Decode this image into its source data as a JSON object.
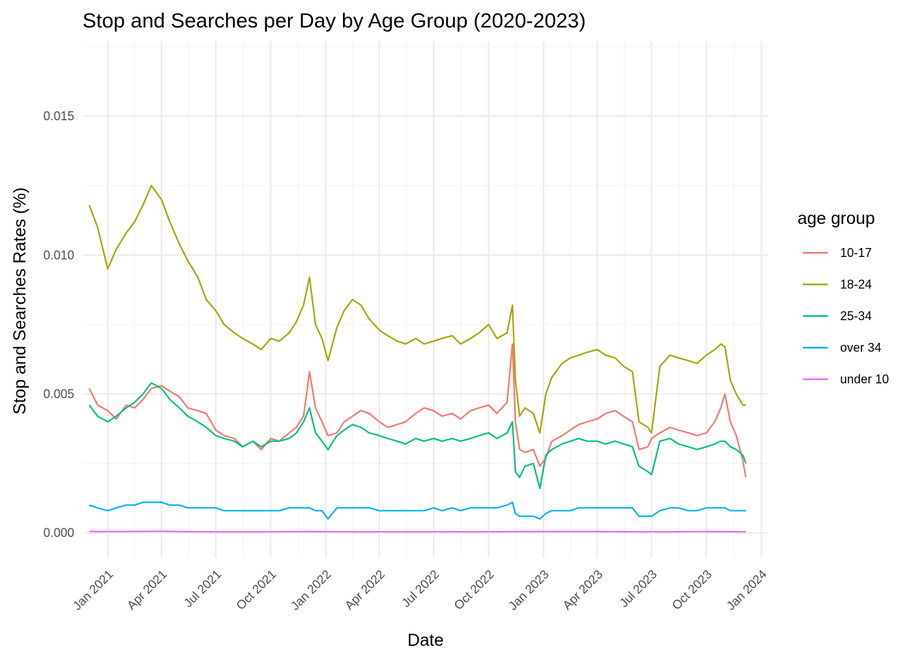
{
  "chart_data": {
    "type": "line",
    "title": "Stop and Searches per Day by Age Group (2020-2023)",
    "xlabel": "Date",
    "ylabel": "Stop and Searches Rates (%)",
    "x_range": [
      "2020-11-22",
      "2024-01-12"
    ],
    "ylim": [
      -0.0009,
      0.0177
    ],
    "grid": true,
    "y_ticks": [
      0.0,
      0.005,
      0.01,
      0.015
    ],
    "y_tick_labels": [
      "0.000",
      "0.005",
      "0.010",
      "0.015"
    ],
    "x_ticks": [
      "2021-01-01",
      "2021-04-01",
      "2021-07-01",
      "2021-10-01",
      "2022-01-01",
      "2022-04-01",
      "2022-07-01",
      "2022-10-01",
      "2023-01-01",
      "2023-04-01",
      "2023-07-01",
      "2023-10-01",
      "2024-01-01"
    ],
    "x_tick_labels": [
      "Jan 2021",
      "Apr 2021",
      "Jul 2021",
      "Oct 2021",
      "Jan 2022",
      "Apr 2022",
      "Jul 2022",
      "Oct 2022",
      "Jan 2023",
      "Apr 2023",
      "Jul 2023",
      "Oct 2023",
      "Jan 2024"
    ],
    "legend": {
      "title": "age group",
      "position": "right"
    },
    "series": [
      {
        "name": "10-17",
        "color": "#F8766D",
        "x": [
          "2020-12-01",
          "2020-12-15",
          "2021-01-01",
          "2021-01-15",
          "2021-02-01",
          "2021-02-15",
          "2021-03-01",
          "2021-03-15",
          "2021-04-01",
          "2021-04-15",
          "2021-05-01",
          "2021-05-15",
          "2021-06-01",
          "2021-06-15",
          "2021-07-01",
          "2021-07-15",
          "2021-08-01",
          "2021-08-15",
          "2021-09-01",
          "2021-09-15",
          "2021-10-01",
          "2021-10-15",
          "2021-11-01",
          "2021-11-13",
          "2021-11-25",
          "2021-12-05",
          "2021-12-15",
          "2021-12-26",
          "2022-01-05",
          "2022-01-20",
          "2022-02-01",
          "2022-02-15",
          "2022-03-01",
          "2022-03-15",
          "2022-04-01",
          "2022-04-15",
          "2022-05-01",
          "2022-05-15",
          "2022-06-01",
          "2022-06-15",
          "2022-07-01",
          "2022-07-15",
          "2022-08-01",
          "2022-08-15",
          "2022-09-01",
          "2022-09-15",
          "2022-10-01",
          "2022-10-15",
          "2022-11-01",
          "2022-11-10",
          "2022-11-15",
          "2022-11-22",
          "2022-12-01",
          "2022-12-15",
          "2022-12-26",
          "2023-01-05",
          "2023-01-15",
          "2023-02-01",
          "2023-02-15",
          "2023-03-01",
          "2023-03-15",
          "2023-04-01",
          "2023-04-15",
          "2023-05-01",
          "2023-05-15",
          "2023-05-30",
          "2023-06-10",
          "2023-06-25",
          "2023-07-01",
          "2023-07-15",
          "2023-08-01",
          "2023-08-15",
          "2023-09-01",
          "2023-09-15",
          "2023-10-01",
          "2023-10-15",
          "2023-10-25",
          "2023-11-01",
          "2023-11-10",
          "2023-11-20",
          "2023-12-01",
          "2023-12-06"
        ],
        "values": [
          0.0052,
          0.0046,
          0.0044,
          0.0041,
          0.0046,
          0.0045,
          0.0048,
          0.0052,
          0.0053,
          0.0051,
          0.0049,
          0.0045,
          0.0044,
          0.0043,
          0.0037,
          0.0035,
          0.0034,
          0.0031,
          0.0033,
          0.003,
          0.0034,
          0.0033,
          0.0036,
          0.0038,
          0.0042,
          0.0058,
          0.0045,
          0.004,
          0.0035,
          0.0036,
          0.004,
          0.0042,
          0.0044,
          0.0043,
          0.004,
          0.0038,
          0.0039,
          0.004,
          0.0043,
          0.0045,
          0.0044,
          0.0042,
          0.0043,
          0.0041,
          0.0044,
          0.0045,
          0.0046,
          0.0043,
          0.0047,
          0.0068,
          0.004,
          0.003,
          0.0029,
          0.003,
          0.0024,
          0.0027,
          0.0033,
          0.0035,
          0.0037,
          0.0039,
          0.004,
          0.0041,
          0.0043,
          0.0044,
          0.0042,
          0.004,
          0.003,
          0.0031,
          0.0034,
          0.0036,
          0.0038,
          0.0037,
          0.0036,
          0.0035,
          0.0036,
          0.004,
          0.0045,
          0.005,
          0.004,
          0.0035,
          0.0026,
          0.002
        ]
      },
      {
        "name": "18-24",
        "color": "#A3A500",
        "x": [
          "2020-12-01",
          "2020-12-15",
          "2021-01-01",
          "2021-01-15",
          "2021-02-01",
          "2021-02-15",
          "2021-03-01",
          "2021-03-15",
          "2021-04-01",
          "2021-04-15",
          "2021-05-01",
          "2021-05-15",
          "2021-06-01",
          "2021-06-15",
          "2021-07-01",
          "2021-07-15",
          "2021-08-01",
          "2021-08-15",
          "2021-09-01",
          "2021-09-15",
          "2021-10-01",
          "2021-10-15",
          "2021-11-01",
          "2021-11-13",
          "2021-11-25",
          "2021-12-05",
          "2021-12-15",
          "2021-12-26",
          "2022-01-05",
          "2022-01-20",
          "2022-02-01",
          "2022-02-15",
          "2022-03-01",
          "2022-03-15",
          "2022-04-01",
          "2022-04-15",
          "2022-05-01",
          "2022-05-15",
          "2022-06-01",
          "2022-06-15",
          "2022-07-01",
          "2022-07-15",
          "2022-08-01",
          "2022-08-15",
          "2022-09-01",
          "2022-09-15",
          "2022-10-01",
          "2022-10-15",
          "2022-11-01",
          "2022-11-10",
          "2022-11-15",
          "2022-11-22",
          "2022-12-01",
          "2022-12-15",
          "2022-12-26",
          "2023-01-05",
          "2023-01-15",
          "2023-02-01",
          "2023-02-15",
          "2023-03-01",
          "2023-03-15",
          "2023-04-01",
          "2023-04-15",
          "2023-05-01",
          "2023-05-15",
          "2023-05-30",
          "2023-06-10",
          "2023-06-25",
          "2023-07-01",
          "2023-07-15",
          "2023-08-01",
          "2023-08-15",
          "2023-09-01",
          "2023-09-15",
          "2023-10-01",
          "2023-10-15",
          "2023-10-25",
          "2023-11-01",
          "2023-11-10",
          "2023-11-20",
          "2023-12-01",
          "2023-12-06"
        ],
        "values": [
          0.0118,
          0.011,
          0.0095,
          0.0102,
          0.0108,
          0.0112,
          0.0118,
          0.0125,
          0.012,
          0.0112,
          0.0104,
          0.0098,
          0.0092,
          0.0084,
          0.008,
          0.0075,
          0.0072,
          0.007,
          0.0068,
          0.0066,
          0.007,
          0.0069,
          0.0072,
          0.0076,
          0.0082,
          0.0092,
          0.0075,
          0.007,
          0.0062,
          0.0074,
          0.008,
          0.0084,
          0.0082,
          0.0077,
          0.0073,
          0.0071,
          0.0069,
          0.0068,
          0.007,
          0.0068,
          0.0069,
          0.007,
          0.0071,
          0.0068,
          0.007,
          0.0072,
          0.0075,
          0.007,
          0.0072,
          0.0082,
          0.0055,
          0.0042,
          0.0045,
          0.0043,
          0.0036,
          0.005,
          0.0056,
          0.0061,
          0.0063,
          0.0064,
          0.0065,
          0.0066,
          0.0064,
          0.0063,
          0.006,
          0.0058,
          0.004,
          0.0038,
          0.0036,
          0.006,
          0.0064,
          0.0063,
          0.0062,
          0.0061,
          0.0064,
          0.0066,
          0.0068,
          0.0067,
          0.0055,
          0.005,
          0.0046,
          0.0046
        ]
      },
      {
        "name": "25-34",
        "color": "#00BF7D",
        "x": [
          "2020-12-01",
          "2020-12-15",
          "2021-01-01",
          "2021-01-15",
          "2021-02-01",
          "2021-02-15",
          "2021-03-01",
          "2021-03-15",
          "2021-04-01",
          "2021-04-15",
          "2021-05-01",
          "2021-05-15",
          "2021-06-01",
          "2021-06-15",
          "2021-07-01",
          "2021-07-15",
          "2021-08-01",
          "2021-08-15",
          "2021-09-01",
          "2021-09-15",
          "2021-10-01",
          "2021-10-15",
          "2021-11-01",
          "2021-11-13",
          "2021-11-25",
          "2021-12-05",
          "2021-12-15",
          "2021-12-26",
          "2022-01-05",
          "2022-01-20",
          "2022-02-01",
          "2022-02-15",
          "2022-03-01",
          "2022-03-15",
          "2022-04-01",
          "2022-04-15",
          "2022-05-01",
          "2022-05-15",
          "2022-06-01",
          "2022-06-15",
          "2022-07-01",
          "2022-07-15",
          "2022-08-01",
          "2022-08-15",
          "2022-09-01",
          "2022-09-15",
          "2022-10-01",
          "2022-10-15",
          "2022-11-01",
          "2022-11-10",
          "2022-11-15",
          "2022-11-22",
          "2022-12-01",
          "2022-12-15",
          "2022-12-26",
          "2023-01-05",
          "2023-01-15",
          "2023-02-01",
          "2023-02-15",
          "2023-03-01",
          "2023-03-15",
          "2023-04-01",
          "2023-04-15",
          "2023-05-01",
          "2023-05-15",
          "2023-05-30",
          "2023-06-10",
          "2023-06-25",
          "2023-07-01",
          "2023-07-15",
          "2023-08-01",
          "2023-08-15",
          "2023-09-01",
          "2023-09-15",
          "2023-10-01",
          "2023-10-15",
          "2023-10-25",
          "2023-11-01",
          "2023-11-10",
          "2023-11-20",
          "2023-12-01",
          "2023-12-06"
        ],
        "values": [
          0.0046,
          0.0042,
          0.004,
          0.0042,
          0.0045,
          0.0047,
          0.005,
          0.0054,
          0.0052,
          0.0048,
          0.0045,
          0.0042,
          0.004,
          0.0038,
          0.0035,
          0.0034,
          0.0033,
          0.0031,
          0.0033,
          0.0031,
          0.0033,
          0.0033,
          0.0034,
          0.0036,
          0.004,
          0.0045,
          0.0036,
          0.0033,
          0.003,
          0.0035,
          0.0037,
          0.0039,
          0.0038,
          0.0036,
          0.0035,
          0.0034,
          0.0033,
          0.0032,
          0.0034,
          0.0033,
          0.0034,
          0.0033,
          0.0034,
          0.0033,
          0.0034,
          0.0035,
          0.0036,
          0.0034,
          0.0036,
          0.004,
          0.0022,
          0.002,
          0.0024,
          0.0025,
          0.0016,
          0.0028,
          0.003,
          0.0032,
          0.0033,
          0.0034,
          0.0033,
          0.0033,
          0.0032,
          0.0033,
          0.0032,
          0.0031,
          0.0024,
          0.0022,
          0.0021,
          0.0033,
          0.0034,
          0.0032,
          0.0031,
          0.003,
          0.0031,
          0.0032,
          0.0033,
          0.0033,
          0.0031,
          0.003,
          0.0028,
          0.0025
        ]
      },
      {
        "name": "over 34",
        "color": "#00B0F6",
        "x": [
          "2020-12-01",
          "2020-12-15",
          "2021-01-01",
          "2021-01-15",
          "2021-02-01",
          "2021-02-15",
          "2021-03-01",
          "2021-03-15",
          "2021-04-01",
          "2021-04-15",
          "2021-05-01",
          "2021-05-15",
          "2021-06-01",
          "2021-06-15",
          "2021-07-01",
          "2021-07-15",
          "2021-08-01",
          "2021-08-15",
          "2021-09-01",
          "2021-09-15",
          "2021-10-01",
          "2021-10-15",
          "2021-11-01",
          "2021-11-13",
          "2021-11-25",
          "2021-12-05",
          "2021-12-15",
          "2021-12-26",
          "2022-01-05",
          "2022-01-20",
          "2022-02-01",
          "2022-02-15",
          "2022-03-01",
          "2022-03-15",
          "2022-04-01",
          "2022-04-15",
          "2022-05-01",
          "2022-05-15",
          "2022-06-01",
          "2022-06-15",
          "2022-07-01",
          "2022-07-15",
          "2022-08-01",
          "2022-08-15",
          "2022-09-01",
          "2022-09-15",
          "2022-10-01",
          "2022-10-15",
          "2022-11-01",
          "2022-11-10",
          "2022-11-15",
          "2022-11-22",
          "2022-12-01",
          "2022-12-15",
          "2022-12-26",
          "2023-01-05",
          "2023-01-15",
          "2023-02-01",
          "2023-02-15",
          "2023-03-01",
          "2023-03-15",
          "2023-04-01",
          "2023-04-15",
          "2023-05-01",
          "2023-05-15",
          "2023-05-30",
          "2023-06-10",
          "2023-06-25",
          "2023-07-01",
          "2023-07-15",
          "2023-08-01",
          "2023-08-15",
          "2023-09-01",
          "2023-09-15",
          "2023-10-01",
          "2023-10-15",
          "2023-10-25",
          "2023-11-01",
          "2023-11-10",
          "2023-11-20",
          "2023-12-01",
          "2023-12-06"
        ],
        "values": [
          0.001,
          0.0009,
          0.0008,
          0.0009,
          0.001,
          0.001,
          0.0011,
          0.0011,
          0.0011,
          0.001,
          0.001,
          0.0009,
          0.0009,
          0.0009,
          0.0009,
          0.0008,
          0.0008,
          0.0008,
          0.0008,
          0.0008,
          0.0008,
          0.0008,
          0.0009,
          0.0009,
          0.0009,
          0.0009,
          0.0008,
          0.0008,
          0.0005,
          0.0009,
          0.0009,
          0.0009,
          0.0009,
          0.0009,
          0.0008,
          0.0008,
          0.0008,
          0.0008,
          0.0008,
          0.0008,
          0.0009,
          0.0008,
          0.0009,
          0.0008,
          0.0009,
          0.0009,
          0.0009,
          0.0009,
          0.001,
          0.0011,
          0.0007,
          0.0006,
          0.0006,
          0.0006,
          0.0005,
          0.0007,
          0.0008,
          0.0008,
          0.0008,
          0.0009,
          0.0009,
          0.0009,
          0.0009,
          0.0009,
          0.0009,
          0.0009,
          0.0006,
          0.0006,
          0.0006,
          0.0008,
          0.0009,
          0.0009,
          0.0008,
          0.0008,
          0.0009,
          0.0009,
          0.0009,
          0.0009,
          0.0008,
          0.0008,
          0.0008,
          0.0008
        ]
      },
      {
        "name": "under 10",
        "color": "#E76BF3",
        "x": [
          "2020-12-01",
          "2021-02-01",
          "2021-04-01",
          "2021-06-01",
          "2021-08-01",
          "2021-10-01",
          "2021-12-01",
          "2022-02-01",
          "2022-04-01",
          "2022-06-01",
          "2022-08-01",
          "2022-10-01",
          "2022-12-01",
          "2023-02-01",
          "2023-04-01",
          "2023-06-01",
          "2023-08-01",
          "2023-10-01",
          "2023-12-06"
        ],
        "values": [
          5e-05,
          5e-05,
          6e-05,
          4e-05,
          4e-05,
          4e-05,
          5e-05,
          4e-05,
          4e-05,
          4e-05,
          4e-05,
          4e-05,
          5e-05,
          5e-05,
          5e-05,
          4e-05,
          4e-05,
          5e-05,
          4e-05
        ]
      }
    ]
  }
}
